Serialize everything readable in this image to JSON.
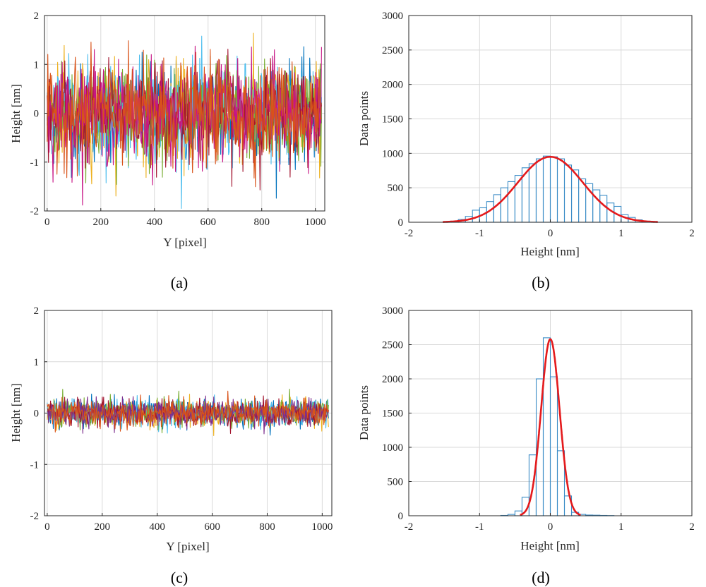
{
  "chart_data": [
    {
      "id": "a",
      "panel_label": "(a)",
      "type": "line",
      "xlabel": "Y [pixel]",
      "ylabel": "Height [nm]",
      "xlim": [
        -10,
        1035
      ],
      "ylim": [
        -2,
        2
      ],
      "xticks": [
        0,
        200,
        400,
        600,
        800,
        1000
      ],
      "yticks": [
        -2,
        -1,
        0,
        1,
        2
      ],
      "x_range": [
        0,
        1023
      ],
      "grid": true,
      "noise_std": 0.5,
      "n_series": 7,
      "series_colors": [
        "#0072BD",
        "#EDB120",
        "#4DBEEE",
        "#77AC30",
        "#A2142F",
        "#C71585",
        "#D95319"
      ]
    },
    {
      "id": "b",
      "panel_label": "(b)",
      "type": "bar",
      "xlabel": "Height [nm]",
      "ylabel": "Data points",
      "xlim": [
        -2,
        2
      ],
      "ylim": [
        0,
        3000
      ],
      "xticks": [
        -2,
        -1,
        0,
        1,
        2
      ],
      "yticks": [
        0,
        500,
        1000,
        1500,
        2000,
        2500,
        3000
      ],
      "grid": true,
      "bin_width": 0.1,
      "bins": [
        {
          "x": -1.45,
          "value": 5
        },
        {
          "x": -1.35,
          "value": 15
        },
        {
          "x": -1.25,
          "value": 40
        },
        {
          "x": -1.15,
          "value": 85
        },
        {
          "x": -1.05,
          "value": 175
        },
        {
          "x": -0.95,
          "value": 210
        },
        {
          "x": -0.85,
          "value": 300
        },
        {
          "x": -0.75,
          "value": 400
        },
        {
          "x": -0.65,
          "value": 500
        },
        {
          "x": -0.55,
          "value": 590
        },
        {
          "x": -0.45,
          "value": 680
        },
        {
          "x": -0.35,
          "value": 790
        },
        {
          "x": -0.25,
          "value": 850
        },
        {
          "x": -0.15,
          "value": 920
        },
        {
          "x": -0.05,
          "value": 960
        },
        {
          "x": 0.05,
          "value": 950
        },
        {
          "x": 0.15,
          "value": 920
        },
        {
          "x": 0.25,
          "value": 830
        },
        {
          "x": 0.35,
          "value": 760
        },
        {
          "x": 0.45,
          "value": 630
        },
        {
          "x": 0.55,
          "value": 560
        },
        {
          "x": 0.65,
          "value": 470
        },
        {
          "x": 0.75,
          "value": 390
        },
        {
          "x": 0.85,
          "value": 280
        },
        {
          "x": 0.95,
          "value": 230
        },
        {
          "x": 1.05,
          "value": 110
        },
        {
          "x": 1.15,
          "value": 70
        },
        {
          "x": 1.25,
          "value": 35
        },
        {
          "x": 1.35,
          "value": 15
        },
        {
          "x": 1.45,
          "value": 5
        }
      ],
      "fit": {
        "type": "gaussian",
        "amplitude": 950,
        "mean": 0,
        "sigma": 0.46,
        "color": "#E41A1C"
      },
      "bar_color": "#3C8DC7"
    },
    {
      "id": "c",
      "panel_label": "(c)",
      "type": "line",
      "xlabel": "Y [pixel]",
      "ylabel": "Height [nm]",
      "xlim": [
        -10,
        1035
      ],
      "ylim": [
        -2,
        2
      ],
      "xticks": [
        0,
        200,
        400,
        600,
        800,
        1000
      ],
      "yticks": [
        -2,
        -1,
        0,
        1,
        2
      ],
      "x_range": [
        0,
        1023
      ],
      "grid": true,
      "noise_std": 0.13,
      "n_series": 7,
      "series_colors": [
        "#0072BD",
        "#EDB120",
        "#4DBEEE",
        "#77AC30",
        "#A2142F",
        "#7E2F8E",
        "#D95319"
      ]
    },
    {
      "id": "d",
      "panel_label": "(d)",
      "type": "bar",
      "xlabel": "Height [nm]",
      "ylabel": "Data points",
      "xlim": [
        -2,
        2
      ],
      "ylim": [
        0,
        3000
      ],
      "xticks": [
        -2,
        -1,
        0,
        1,
        2
      ],
      "yticks": [
        0,
        500,
        1000,
        1500,
        2000,
        2500,
        3000
      ],
      "grid": true,
      "bin_width": 0.1,
      "bins": [
        {
          "x": -0.65,
          "value": 5
        },
        {
          "x": -0.55,
          "value": 20
        },
        {
          "x": -0.45,
          "value": 70
        },
        {
          "x": -0.35,
          "value": 270
        },
        {
          "x": -0.25,
          "value": 890
        },
        {
          "x": -0.15,
          "value": 2000
        },
        {
          "x": -0.05,
          "value": 2600
        },
        {
          "x": 0.05,
          "value": 2030
        },
        {
          "x": 0.15,
          "value": 950
        },
        {
          "x": 0.25,
          "value": 290
        },
        {
          "x": 0.35,
          "value": 50
        },
        {
          "x": 0.45,
          "value": 20
        },
        {
          "x": 0.55,
          "value": 10
        },
        {
          "x": 0.65,
          "value": 8
        },
        {
          "x": 0.75,
          "value": 5
        },
        {
          "x": 0.85,
          "value": 3
        }
      ],
      "fit": {
        "type": "gaussian",
        "amplitude": 2580,
        "mean": 0,
        "sigma": 0.13,
        "color": "#E41A1C"
      },
      "bar_color": "#3C8DC7"
    }
  ]
}
